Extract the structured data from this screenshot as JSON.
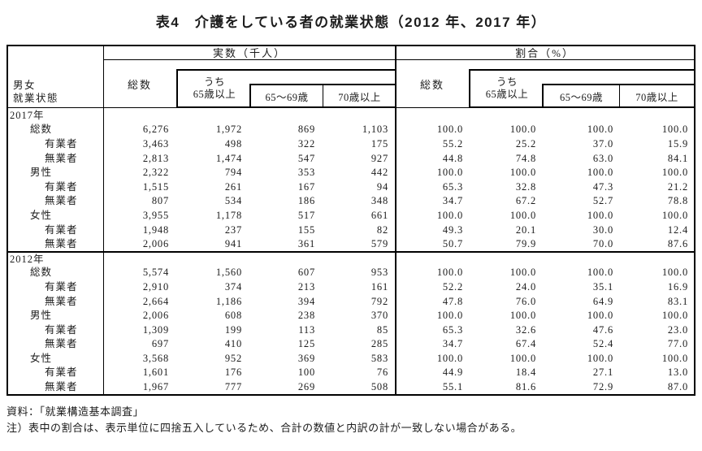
{
  "title": "表4　介護をしている者の就業状態（2012 年、2017 年）",
  "header": {
    "stub_line1": "男女",
    "stub_line2": "就業状態",
    "groups": [
      {
        "title": "実数（千人）"
      },
      {
        "title": "割合（%）"
      }
    ],
    "col_total": "総数",
    "col_uchi_line1": "うち",
    "col_uchi_line2": "65歳以上",
    "col_65_69": "65～69歳",
    "col_70over": "70歳以上"
  },
  "table": {
    "rows": [
      {
        "label": "2017年",
        "indent": 0,
        "section_start": false,
        "values": [
          "",
          "",
          "",
          "",
          "",
          "",
          "",
          ""
        ]
      },
      {
        "label": "総数",
        "indent": 1,
        "section_start": false,
        "values": [
          "6,276",
          "1,972",
          "869",
          "1,103",
          "100.0",
          "100.0",
          "100.0",
          "100.0"
        ]
      },
      {
        "label": "有業者",
        "indent": 2,
        "section_start": false,
        "values": [
          "3,463",
          "498",
          "322",
          "175",
          "55.2",
          "25.2",
          "37.0",
          "15.9"
        ]
      },
      {
        "label": "無業者",
        "indent": 2,
        "section_start": false,
        "values": [
          "2,813",
          "1,474",
          "547",
          "927",
          "44.8",
          "74.8",
          "63.0",
          "84.1"
        ]
      },
      {
        "label": "男性",
        "indent": 1,
        "section_start": false,
        "values": [
          "2,322",
          "794",
          "353",
          "442",
          "100.0",
          "100.0",
          "100.0",
          "100.0"
        ]
      },
      {
        "label": "有業者",
        "indent": 2,
        "section_start": false,
        "values": [
          "1,515",
          "261",
          "167",
          "94",
          "65.3",
          "32.8",
          "47.3",
          "21.2"
        ]
      },
      {
        "label": "無業者",
        "indent": 2,
        "section_start": false,
        "values": [
          "807",
          "534",
          "186",
          "348",
          "34.7",
          "67.2",
          "52.7",
          "78.8"
        ]
      },
      {
        "label": "女性",
        "indent": 1,
        "section_start": false,
        "values": [
          "3,955",
          "1,178",
          "517",
          "661",
          "100.0",
          "100.0",
          "100.0",
          "100.0"
        ]
      },
      {
        "label": "有業者",
        "indent": 2,
        "section_start": false,
        "values": [
          "1,948",
          "237",
          "155",
          "82",
          "49.3",
          "20.1",
          "30.0",
          "12.4"
        ]
      },
      {
        "label": "無業者",
        "indent": 2,
        "section_start": false,
        "values": [
          "2,006",
          "941",
          "361",
          "579",
          "50.7",
          "79.9",
          "70.0",
          "87.6"
        ]
      },
      {
        "label": "2012年",
        "indent": 0,
        "section_start": true,
        "values": [
          "",
          "",
          "",
          "",
          "",
          "",
          "",
          ""
        ]
      },
      {
        "label": "総数",
        "indent": 1,
        "section_start": false,
        "values": [
          "5,574",
          "1,560",
          "607",
          "953",
          "100.0",
          "100.0",
          "100.0",
          "100.0"
        ]
      },
      {
        "label": "有業者",
        "indent": 2,
        "section_start": false,
        "values": [
          "2,910",
          "374",
          "213",
          "161",
          "52.2",
          "24.0",
          "35.1",
          "16.9"
        ]
      },
      {
        "label": "無業者",
        "indent": 2,
        "section_start": false,
        "values": [
          "2,664",
          "1,186",
          "394",
          "792",
          "47.8",
          "76.0",
          "64.9",
          "83.1"
        ]
      },
      {
        "label": "男性",
        "indent": 1,
        "section_start": false,
        "values": [
          "2,006",
          "608",
          "238",
          "370",
          "100.0",
          "100.0",
          "100.0",
          "100.0"
        ]
      },
      {
        "label": "有業者",
        "indent": 2,
        "section_start": false,
        "values": [
          "1,309",
          "199",
          "113",
          "85",
          "65.3",
          "32.6",
          "47.6",
          "23.0"
        ]
      },
      {
        "label": "無業者",
        "indent": 2,
        "section_start": false,
        "values": [
          "697",
          "410",
          "125",
          "285",
          "34.7",
          "67.4",
          "52.4",
          "77.0"
        ]
      },
      {
        "label": "女性",
        "indent": 1,
        "section_start": false,
        "values": [
          "3,568",
          "952",
          "369",
          "583",
          "100.0",
          "100.0",
          "100.0",
          "100.0"
        ]
      },
      {
        "label": "有業者",
        "indent": 2,
        "section_start": false,
        "values": [
          "1,601",
          "176",
          "100",
          "76",
          "44.9",
          "18.4",
          "27.1",
          "13.0"
        ]
      },
      {
        "label": "無業者",
        "indent": 2,
        "section_start": false,
        "values": [
          "1,967",
          "777",
          "269",
          "508",
          "55.1",
          "81.6",
          "72.9",
          "87.0"
        ]
      }
    ]
  },
  "notes": {
    "source": "資料：「就業構造基本調査」",
    "note": "注）表中の割合は、表示単位に四捨五入しているため、合計の数値と内訳の計が一致しない場合がある。"
  },
  "colors": {
    "text": "#1c1c1c",
    "border": "#000000",
    "background": "#ffffff"
  }
}
